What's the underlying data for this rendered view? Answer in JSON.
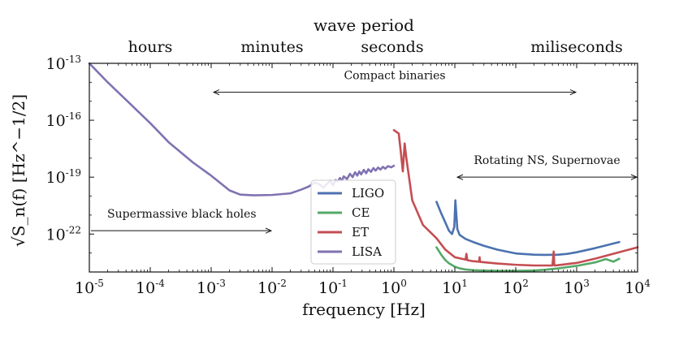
{
  "chart_data": {
    "type": "line",
    "xlabel": "frequency [Hz]",
    "ylabel": "√S_n(f) [Hz^−1/2]",
    "xscale": "log",
    "yscale": "log",
    "xlim": [
      1e-05,
      10000.0
    ],
    "ylim": [
      1e-24,
      1e-13
    ],
    "x_ticks": [
      {
        "base": "10",
        "exp": "-5"
      },
      {
        "base": "10",
        "exp": "-4"
      },
      {
        "base": "10",
        "exp": "-3"
      },
      {
        "base": "10",
        "exp": "-2"
      },
      {
        "base": "10",
        "exp": "-1"
      },
      {
        "base": "10",
        "exp": "0"
      },
      {
        "base": "10",
        "exp": "1"
      },
      {
        "base": "10",
        "exp": "2"
      },
      {
        "base": "10",
        "exp": "3"
      },
      {
        "base": "10",
        "exp": "4"
      }
    ],
    "y_ticks": [
      {
        "value": -13,
        "base": "10",
        "exp": "-13"
      },
      {
        "value": -16,
        "base": "10",
        "exp": "-16"
      },
      {
        "value": -19,
        "base": "10",
        "exp": "-19"
      },
      {
        "value": -22,
        "base": "10",
        "exp": "-22"
      }
    ],
    "top_axis": {
      "title": "wave period",
      "labels": [
        {
          "text": "hours",
          "freq": 0.0001
        },
        {
          "text": "minutes",
          "freq": 0.01
        },
        {
          "text": "seconds",
          "freq": 1
        },
        {
          "text": "miliseconds",
          "freq": 1000
        }
      ]
    },
    "annotations": [
      {
        "text": "Compact binaries",
        "x_from": 0.001,
        "x_to": 1000,
        "y": 3e-15,
        "arrow": "both"
      },
      {
        "text": "Rotating NS, Supernovae",
        "x_from": 10,
        "x_to": 10000,
        "y": 1e-19,
        "arrow": "both"
      },
      {
        "text": "Supermassive black holes",
        "x_from": 1e-05,
        "x_to": 0.01,
        "y": 1.5e-22,
        "arrow": "end"
      }
    ],
    "legend": {
      "position": "center"
    },
    "series": [
      {
        "name": "LIGO",
        "color": "#4c72b0",
        "x": [
          5,
          6,
          7,
          8,
          9,
          9.8,
          10.2,
          11,
          12,
          15,
          20,
          30,
          50,
          100,
          200,
          300,
          500,
          700,
          1000,
          2000,
          5000
        ],
        "y": [
          5e-21,
          1.2e-21,
          4e-22,
          1.5e-22,
          1e-22,
          2.4e-22,
          6e-21,
          1.8e-22,
          9e-23,
          5.5e-23,
          3.8e-23,
          2.4e-23,
          1.5e-23,
          9.5e-24,
          8.2e-24,
          8e-24,
          8.2e-24,
          9e-24,
          1.1e-23,
          1.8e-23,
          3.8e-23
        ]
      },
      {
        "name": "CE",
        "color": "#55a868",
        "x": [
          5,
          6,
          7,
          8,
          10,
          12,
          15,
          20,
          30,
          50,
          100,
          200,
          300,
          500,
          1000,
          2000,
          3000,
          4000,
          5000
        ],
        "y": [
          2e-23,
          8e-24,
          4.2e-24,
          2.9e-24,
          1.9e-24,
          1.55e-24,
          1.35e-24,
          1.25e-24,
          1.2e-24,
          1.15e-24,
          1.15e-24,
          1.2e-24,
          1.3e-24,
          1.55e-24,
          2.1e-24,
          3.2e-24,
          4.8e-24,
          3.5e-24,
          5e-24
        ]
      },
      {
        "name": "ET",
        "color": "#c44e52",
        "x": [
          1,
          1.2,
          1.3,
          1.4,
          1.5,
          1.6,
          2,
          3,
          5,
          7,
          10,
          15,
          15.5,
          16,
          20,
          25,
          25.5,
          26,
          50,
          100,
          200,
          400,
          420,
          430,
          440,
          500,
          1000,
          2000,
          5000,
          10000
        ],
        "y": [
          3e-17,
          2e-17,
          2e-18,
          2e-19,
          6e-18,
          1e-18,
          6e-21,
          3e-22,
          6e-23,
          1.5e-23,
          6e-24,
          4.5e-24,
          9e-24,
          4.2e-24,
          3.7e-24,
          3.5e-24,
          6e-24,
          3.4e-24,
          2.8e-24,
          2.4e-24,
          2.2e-24,
          2.2e-24,
          1.2e-23,
          2.2e-24,
          2.2e-24,
          2.3e-24,
          3e-24,
          5e-24,
          1.1e-23,
          2e-23
        ]
      },
      {
        "name": "LISA",
        "color": "#8172b2",
        "x": [
          1e-05,
          2e-05,
          5e-05,
          0.0001,
          0.0002,
          0.0005,
          0.001,
          0.002,
          0.003,
          0.005,
          0.01,
          0.02,
          0.03,
          0.04,
          0.05,
          0.06,
          0.07,
          0.08,
          0.09,
          0.1,
          0.11,
          0.12,
          0.13,
          0.14,
          0.15,
          0.17,
          0.19,
          0.21,
          0.23,
          0.25,
          0.27,
          0.29,
          0.32,
          0.35,
          0.38,
          0.42,
          0.46,
          0.5,
          0.55,
          0.6,
          0.66,
          0.72,
          0.8,
          0.9,
          1.0
        ],
        "y": [
          1e-13,
          1e-14,
          6e-16,
          7e-17,
          7e-18,
          6e-19,
          1.2e-19,
          2e-20,
          1.2e-20,
          1.1e-20,
          1.15e-20,
          1.4e-20,
          2.2e-20,
          3.2e-20,
          5.2e-20,
          4.2e-20,
          2.8e-20,
          4.5e-20,
          6.5e-20,
          3.8e-20,
          7e-20,
          6e-20,
          9e-20,
          6.5e-20,
          1.1e-19,
          8e-20,
          1.5e-19,
          1e-19,
          1.8e-19,
          1.2e-19,
          2e-19,
          1.4e-19,
          2.4e-19,
          1.6e-19,
          2.6e-19,
          1.9e-19,
          3e-19,
          2.2e-19,
          3.2e-19,
          2.5e-19,
          3.5e-19,
          2.8e-19,
          3.8e-19,
          3.3e-19,
          4e-19
        ]
      }
    ]
  }
}
